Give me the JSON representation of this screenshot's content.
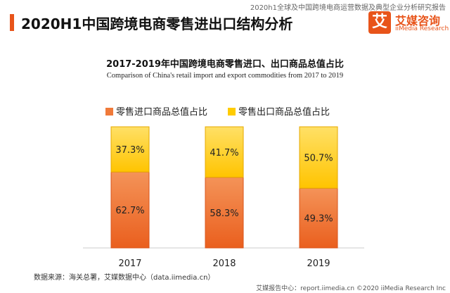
{
  "header": {
    "report_name": "2020h1全球及中国跨境电商运营数据及典型企业分析研究报告",
    "page_title": "2020H1中国跨境电商零售进出口结构分析"
  },
  "logo": {
    "mark": "艾",
    "name_cn": "艾媒咨询",
    "name_en": "iiMedia Research"
  },
  "colors": {
    "accent": "#e8541a",
    "import_series": "#f07a3a",
    "export_series": "#ffcc00"
  },
  "chart_data": {
    "type": "bar",
    "stacked": true,
    "percent": true,
    "title": "2017-2019年中国跨境电商零售进口、出口商品总值占比",
    "subtitle": "Comparison of China's retail import and export commodities from 2017 to 2019",
    "categories": [
      "2017",
      "2018",
      "2019"
    ],
    "series": [
      {
        "name": "零售进口商品总值占比",
        "values": [
          62.7,
          58.3,
          49.3
        ],
        "color": "#f07a3a"
      },
      {
        "name": "零售出口商品总值占比",
        "values": [
          37.3,
          41.7,
          50.7
        ],
        "color": "#ffcc00"
      }
    ],
    "ylim": [
      0,
      100
    ],
    "value_suffix": "%",
    "grid": false,
    "legend_position": "top"
  },
  "source": "数据来源：海关总署，艾媒数据中心（data.iimedia.cn）",
  "footer": "艾媒报告中心：report.iimedia.cn    ©2020  iiMedia Research  Inc"
}
